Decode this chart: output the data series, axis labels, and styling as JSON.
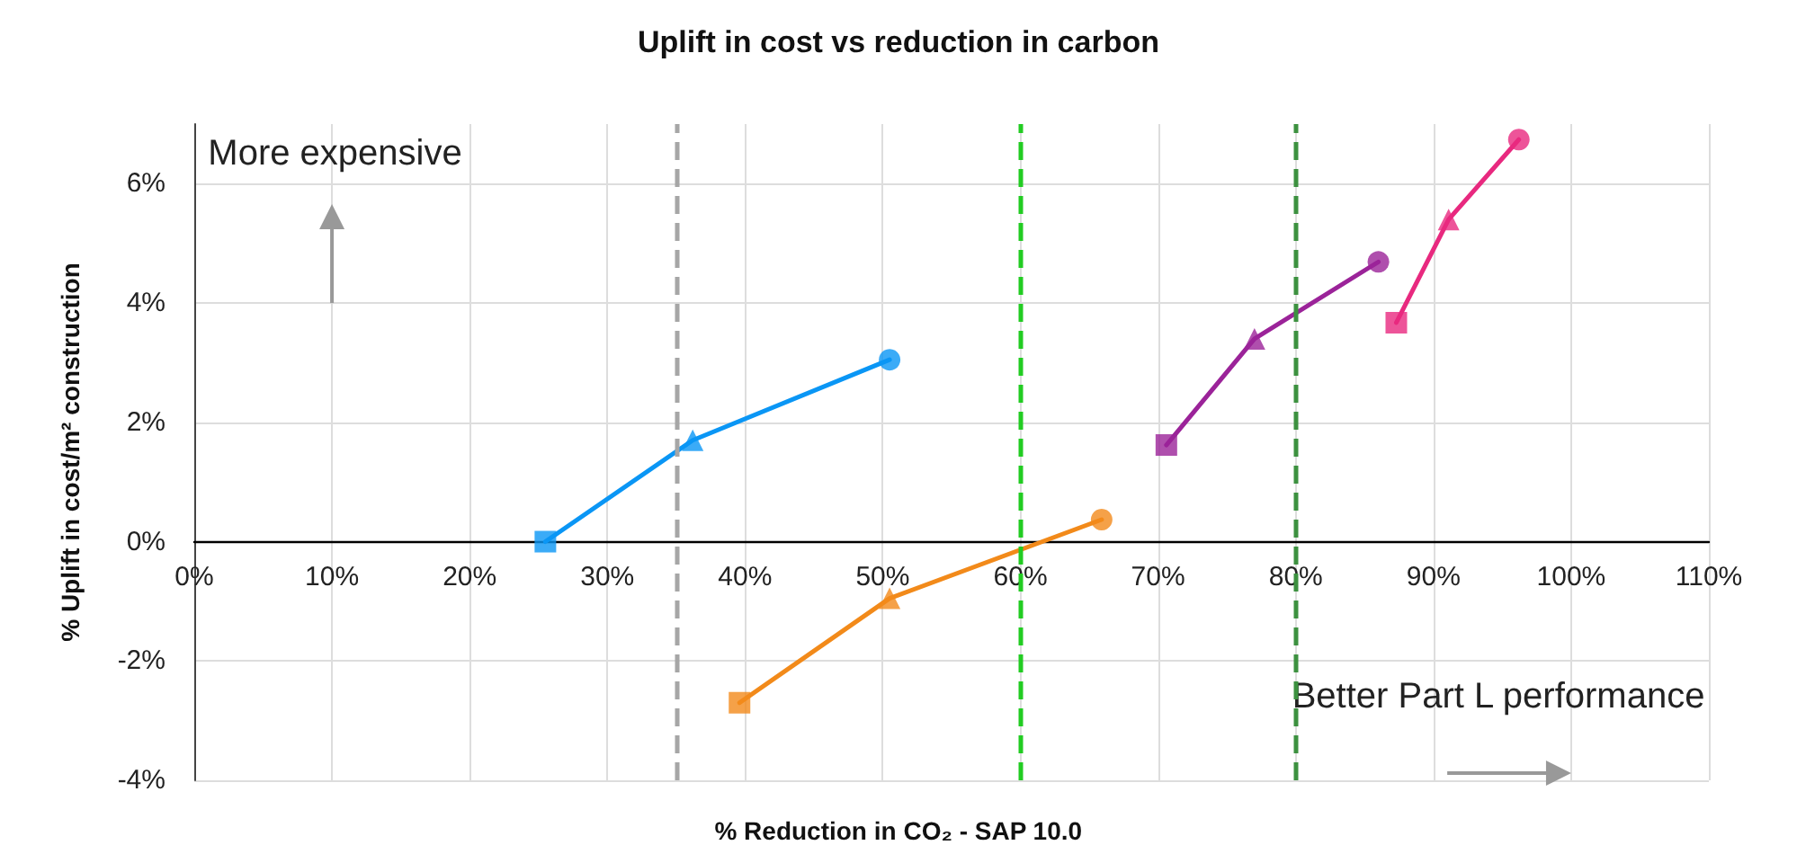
{
  "chart_data": {
    "type": "line",
    "title": "Uplift in cost vs reduction in carbon",
    "xlabel": "% Reduction in CO₂ - SAP 10.0",
    "ylabel": "% Uplift in cost/m² construction",
    "series": [
      {
        "color": "#0a96f5",
        "marker": "none",
        "x": [
          25.5,
          36.2,
          50.5
        ],
        "values": [
          0,
          1.7,
          3.05
        ]
      },
      {
        "color": "#f28a1a",
        "marker": "none",
        "x": [
          39.6,
          50.5,
          65.9
        ],
        "values": [
          -2.7,
          -0.95,
          0.37
        ]
      },
      {
        "color": "#9b2399",
        "marker": "none",
        "x": [
          70.6,
          77.0,
          86.0
        ],
        "values": [
          1.62,
          3.4,
          4.69
        ]
      },
      {
        "color": "#e8297f",
        "marker": "none",
        "x": [
          87.3,
          91.1,
          96.2
        ],
        "values": [
          3.67,
          5.4,
          6.74
        ]
      },
      {
        "type": "scatter",
        "marker": "square",
        "x": [
          25.5,
          39.6,
          70.6,
          87.3
        ],
        "values": [
          0,
          -2.7,
          1.62,
          3.67
        ],
        "colors": [
          "#0a96f5",
          "#f28a1a",
          "#9b2399",
          "#e8297f"
        ]
      },
      {
        "type": "scatter",
        "marker": "triangle",
        "x": [
          36.2,
          50.5,
          77.0,
          91.1
        ],
        "values": [
          1.7,
          -0.95,
          3.4,
          5.4
        ],
        "colors": [
          "#0a96f5",
          "#f28a1a",
          "#9b2399",
          "#e8297f"
        ]
      },
      {
        "type": "scatter",
        "marker": "circle",
        "x": [
          50.5,
          65.9,
          86.0,
          96.2
        ],
        "values": [
          3.05,
          0.37,
          4.69,
          6.74
        ],
        "colors": [
          "#0a96f5",
          "#f28a1a",
          "#9b2399",
          "#e8297f"
        ]
      }
    ],
    "xlim": [
      0,
      110
    ],
    "xticks": [
      {
        "value": 0,
        "label": "0%"
      },
      {
        "value": 10,
        "label": "10%"
      },
      {
        "value": 20,
        "label": "20%"
      },
      {
        "value": 30,
        "label": "30%"
      },
      {
        "value": 40,
        "label": "40%"
      },
      {
        "value": 50,
        "label": "50%"
      },
      {
        "value": 60,
        "label": "60%"
      },
      {
        "value": 70,
        "label": "70%"
      },
      {
        "value": 80,
        "label": "80%"
      },
      {
        "value": 90,
        "label": "90%"
      },
      {
        "value": 100,
        "label": "100%"
      },
      {
        "value": 110,
        "label": "110%"
      }
    ],
    "ylim": [
      -4,
      7
    ],
    "yticks": [
      {
        "value": -4,
        "label": "-4%"
      },
      {
        "value": -2,
        "label": "-2%"
      },
      {
        "value": 0,
        "label": "0%"
      },
      {
        "value": 2,
        "label": "2%"
      },
      {
        "value": 4,
        "label": "4%"
      },
      {
        "value": 6,
        "label": "6%"
      }
    ],
    "ref_lines": [
      {
        "axis": "x",
        "value": 35,
        "color": "#a6a6a6",
        "line_style": "dashed"
      },
      {
        "axis": "x",
        "value": 60,
        "color": "#22cc22",
        "line_style": "dashed"
      },
      {
        "axis": "x",
        "value": 80,
        "color": "#3d9140",
        "line_style": "dashed"
      }
    ],
    "annotations": [
      "More expensive",
      "Better Part L performance"
    ],
    "grid": true
  }
}
